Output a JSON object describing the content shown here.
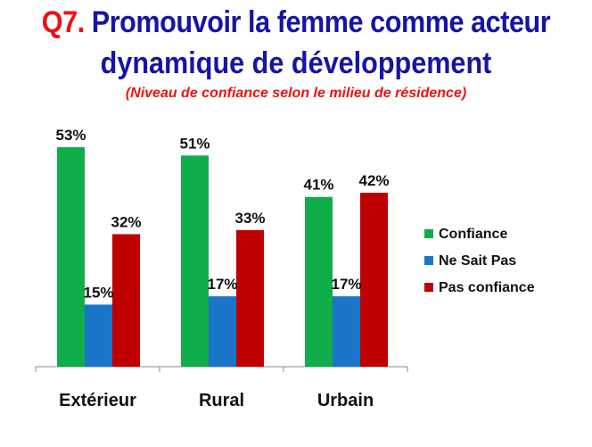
{
  "header": {
    "q_prefix": "Q7.",
    "title_line1": "Promouvoir la femme comme acteur",
    "title_line2": "dynamique de développement",
    "subtitle": "(Niveau de confiance selon le milieu de résidence)"
  },
  "colors": {
    "prefix": "#ee1111",
    "title": "#1515a6",
    "subtitle": "#ee1111"
  },
  "chart_data": {
    "type": "bar",
    "categories": [
      "Extérieur",
      "Rural",
      "Urbain"
    ],
    "series": [
      {
        "name": "Confiance",
        "values": [
          53,
          51,
          41
        ],
        "labels": [
          "53%",
          "51%",
          "41%"
        ],
        "color": "#0fae4b"
      },
      {
        "name": "Ne Sait Pas",
        "values": [
          15,
          17,
          17
        ],
        "labels": [
          "15%",
          "17%",
          "17%"
        ],
        "color": "#1a75c9"
      },
      {
        "name": "Pas confiance",
        "values": [
          32,
          33,
          42
        ],
        "labels": [
          "32%",
          "33%",
          "42%"
        ],
        "color": "#c00000"
      }
    ],
    "ylim": [
      0,
      53
    ],
    "grid": false,
    "legend_position": "right"
  }
}
